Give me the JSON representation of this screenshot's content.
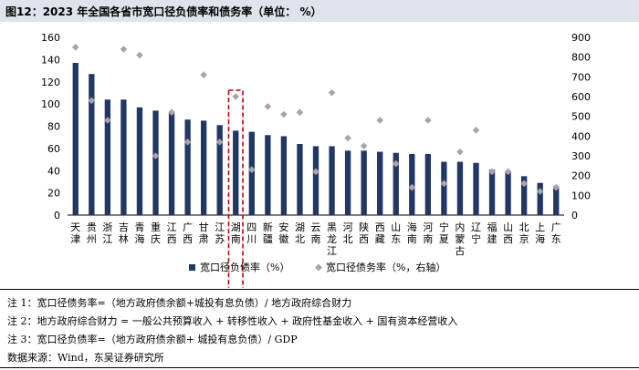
{
  "title": "图12：2023 年全国各省市宽口径负债率和债务率（单位：  %）",
  "notes": [
    "注 1：宽口径债务率=（地方政府债余额+城投有息负债）/ 地方政府综合财力",
    "注 2：地方政府综合财力 = 一般公共预算收入 + 转移性收入 + 政府性基金收入 + 国有资本经营收入",
    "注 3：宽口径负债率=（地方政府债余额+ 城投有息负债）/ GDP"
  ],
  "source": "数据来源：Wind，东吴证券研究所",
  "chart_data": {
    "type": "bar",
    "categories": [
      "天津",
      "贵州",
      "浙江",
      "吉林",
      "青海",
      "重庆",
      "江西",
      "广西",
      "甘肃",
      "江苏",
      "湖南",
      "四川",
      "新疆",
      "安徽",
      "湖北",
      "云南",
      "黑龙江",
      "河北",
      "陕西",
      "西藏",
      "山东",
      "海南",
      "河南",
      "宁夏",
      "内蒙古",
      "辽宁",
      "福建",
      "山西",
      "北京",
      "上海",
      "广东"
    ],
    "series": [
      {
        "name": "宽口径负债率（%）",
        "type": "bar",
        "axis": "left",
        "color": "#1f3864",
        "values": [
          137,
          127,
          104,
          104,
          97,
          94,
          92,
          86,
          85,
          81,
          76,
          75,
          72,
          71,
          64,
          62,
          62,
          58,
          58,
          57,
          56,
          55,
          55,
          48,
          48,
          47,
          41,
          40,
          35,
          29,
          26
        ]
      },
      {
        "name": "宽口径债务率（%，右轴）",
        "type": "scatter",
        "axis": "right",
        "color": "#a6a6a6",
        "values": [
          850,
          580,
          480,
          840,
          810,
          300,
          520,
          370,
          710,
          370,
          600,
          230,
          550,
          510,
          520,
          220,
          620,
          390,
          350,
          480,
          260,
          140,
          480,
          160,
          320,
          430,
          220,
          220,
          160,
          120,
          140
        ]
      }
    ],
    "highlight_category": "湖南",
    "y_left": {
      "min": 0,
      "max": 160,
      "ticks": [
        0,
        20,
        40,
        60,
        80,
        100,
        120,
        140,
        160
      ]
    },
    "y_right": {
      "min": 0,
      "max": 900,
      "ticks": [
        0,
        100,
        200,
        300,
        400,
        500,
        600,
        700,
        800,
        900
      ]
    },
    "legend_position": "bottom"
  }
}
